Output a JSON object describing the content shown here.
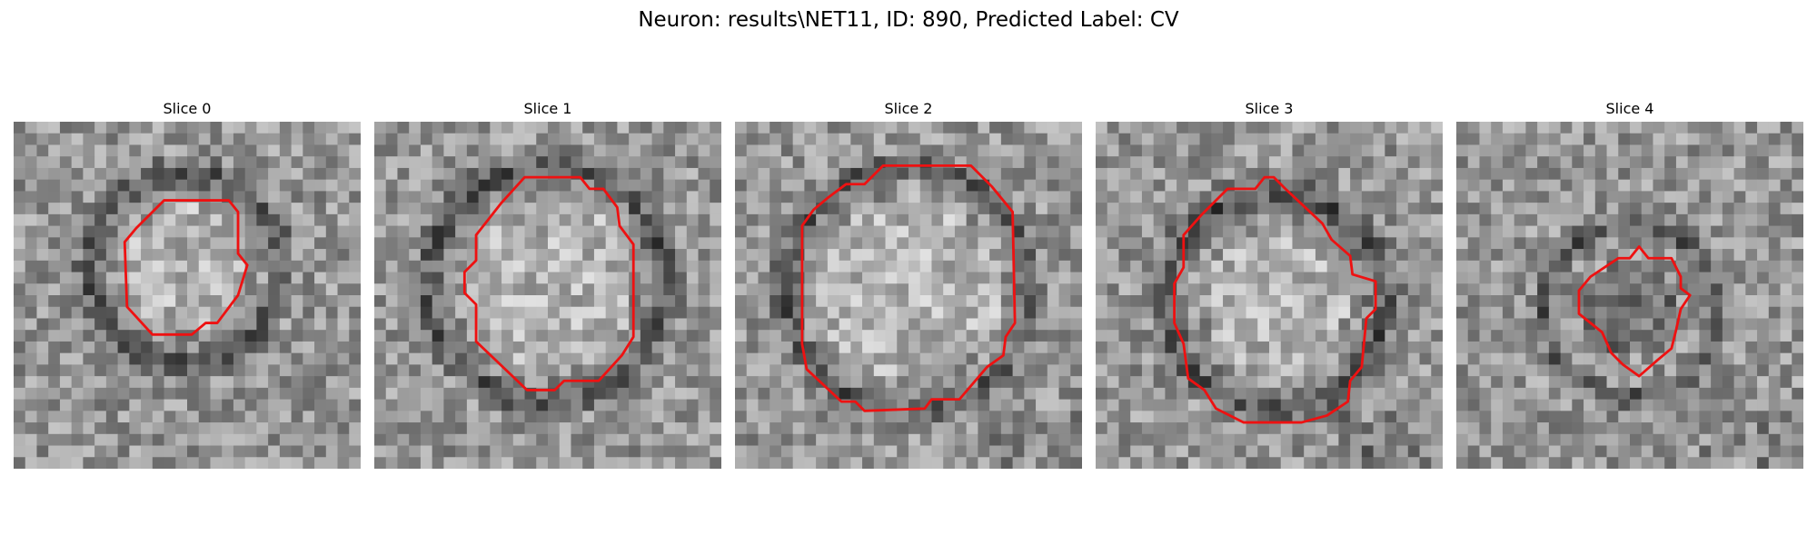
{
  "figure": {
    "title": "Neuron: results\\NET11, ID: 890, Predicted Label: CV"
  },
  "slices": [
    {
      "label": "Slice 0"
    },
    {
      "label": "Slice 1"
    },
    {
      "label": "Slice 2"
    },
    {
      "label": "Slice 3"
    },
    {
      "label": "Slice 4"
    }
  ],
  "colors": {
    "contour": "#ee1111",
    "background": "#ffffff"
  }
}
